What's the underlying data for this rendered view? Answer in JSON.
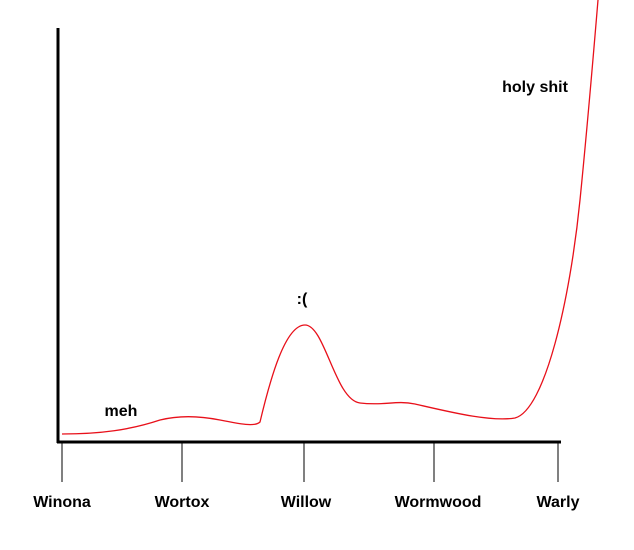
{
  "axis": {
    "labels": [
      "Winona",
      "Wortox",
      "Willow",
      "Wormwood",
      "Warly"
    ]
  },
  "annotations": [
    "meh",
    ":(",
    "holy shit"
  ]
}
